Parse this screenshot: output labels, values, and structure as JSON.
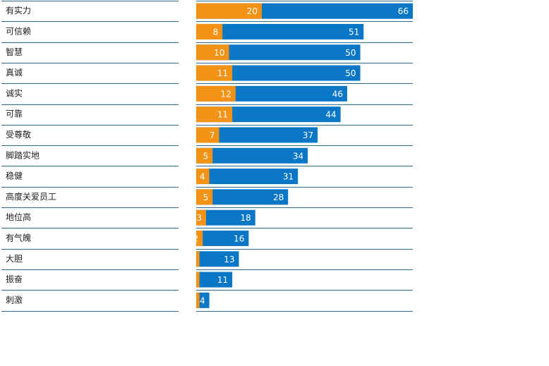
{
  "chart_data": {
    "type": "overlap-hbar",
    "categories": [
      "有实力",
      "可信赖",
      "智慧",
      "真诚",
      "诚实",
      "可靠",
      "受尊敬",
      "脚踏实地",
      "稳健",
      "高度关爱员工",
      "地位高",
      "有气魄",
      "大胆",
      "振奋",
      "刺激"
    ],
    "series": [
      {
        "color": "#0a76c6",
        "values": [
          66,
          51,
          50,
          50,
          46,
          44,
          37,
          34,
          31,
          28,
          18,
          16,
          13,
          11,
          4
        ]
      },
      {
        "color": "#f39214",
        "values": [
          20,
          8,
          10,
          11,
          12,
          11,
          7,
          5,
          4,
          5,
          3,
          2,
          1,
          1,
          1
        ]
      }
    ],
    "xlim": [
      0,
      66
    ]
  }
}
